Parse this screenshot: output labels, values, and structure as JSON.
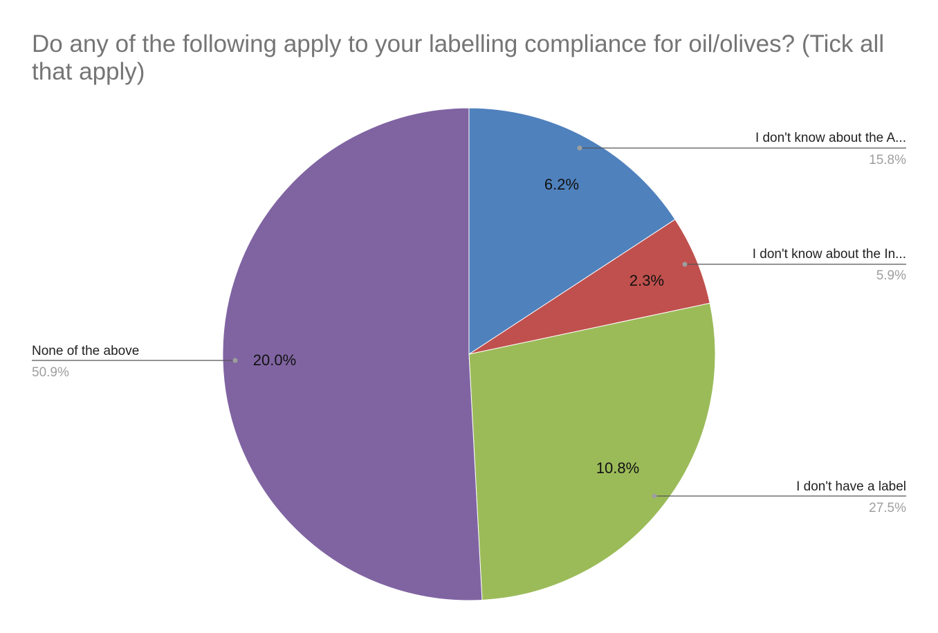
{
  "chart_data": {
    "type": "pie",
    "title": "Do any of the following apply to your labelling compliance for oil/olives?  (Tick all that apply)",
    "slices": [
      {
        "label": "I don't know about the A...",
        "percent_label": "15.8%",
        "inner_label": "6.2%",
        "value": 15.8,
        "color": "#4f81bd"
      },
      {
        "label": "I don't know about the In...",
        "percent_label": "5.9%",
        "inner_label": "2.3%",
        "value": 5.9,
        "color": "#c0504d"
      },
      {
        "label": "I don't have a label",
        "percent_label": "27.5%",
        "inner_label": "10.8%",
        "value": 27.5,
        "color": "#9bbb59"
      },
      {
        "label": "None of the above",
        "percent_label": "50.9%",
        "inner_label": "20.0%",
        "value": 50.9,
        "color": "#8064a2"
      }
    ]
  }
}
